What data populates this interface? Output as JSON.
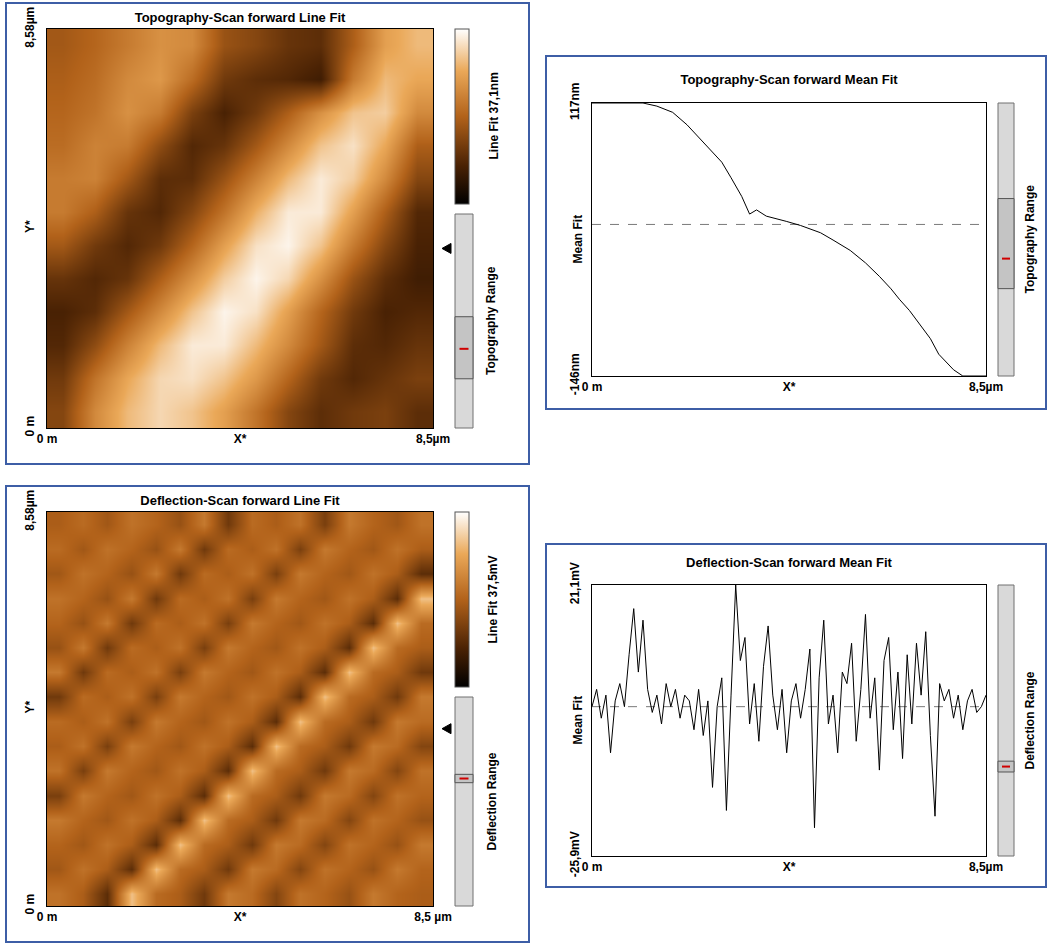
{
  "chart_data": [
    {
      "type": "heatmap",
      "title": "Topography-Scan forward Line Fit",
      "colorbar_label": "Line Fit 37,1nm",
      "range_label": "Topography Range",
      "xlim": [
        0,
        8.5
      ],
      "ylim": [
        0,
        8.58
      ],
      "xticks": [
        {
          "value": 0,
          "label": "0 m"
        },
        {
          "value": 4.25,
          "label": "X*"
        },
        {
          "value": 8.5,
          "label": "8,5µm"
        }
      ],
      "yticks": [
        {
          "value": 0,
          "label": "0 m"
        },
        {
          "value": 4.29,
          "label": "Y*"
        },
        {
          "value": 8.58,
          "label": "8,58µm"
        }
      ],
      "zlim": [
        0,
        37.1
      ],
      "z": [
        [
          14,
          24,
          30,
          33,
          31,
          27,
          21,
          14,
          10,
          12,
          13,
          10
        ],
        [
          12,
          21,
          28,
          33,
          34,
          31,
          26,
          19,
          12,
          9,
          11,
          13
        ],
        [
          9,
          15,
          23,
          30,
          35,
          35,
          30,
          24,
          17,
          10,
          9,
          11
        ],
        [
          8,
          10,
          17,
          24,
          31,
          36,
          34,
          27,
          19,
          12,
          8,
          9
        ],
        [
          11,
          9,
          11,
          18,
          25,
          32,
          36,
          33,
          25,
          16,
          10,
          7
        ],
        [
          17,
          12,
          9,
          12,
          19,
          27,
          34,
          36,
          31,
          22,
          14,
          8
        ],
        [
          22,
          18,
          11,
          9,
          14,
          21,
          29,
          35,
          35,
          27,
          18,
          9
        ],
        [
          22,
          23,
          17,
          10,
          10,
          16,
          23,
          30,
          35,
          32,
          24,
          14
        ],
        [
          20,
          23,
          22,
          15,
          9,
          11,
          17,
          24,
          31,
          34,
          28,
          18
        ],
        [
          19,
          21,
          25,
          22,
          13,
          8,
          12,
          18,
          25,
          31,
          32,
          24
        ],
        [
          18,
          20,
          24,
          26,
          20,
          12,
          10,
          9,
          7,
          22,
          30,
          28
        ],
        [
          17,
          19,
          22,
          25,
          24,
          16,
          14,
          11,
          10,
          18,
          27,
          30
        ]
      ]
    },
    {
      "type": "line",
      "title": "Topography-Scan forward Mean Fit",
      "y_label": "Mean Fit",
      "range_label": "Topography Range",
      "color": "#000000",
      "xlim": [
        0,
        8.5
      ],
      "ylim": [
        -146,
        117
      ],
      "xticks": [
        {
          "value": 0,
          "label": "0 m"
        },
        {
          "value": 4.25,
          "label": "X*"
        },
        {
          "value": 8.5,
          "label": "8,5µm"
        }
      ],
      "yticks": [
        {
          "value": -146,
          "label": "-146nm"
        },
        {
          "value": 117,
          "label": "117nm"
        }
      ],
      "mean_line": 0,
      "x": [
        0,
        1.1,
        1.4,
        1.74,
        2.05,
        2.38,
        2.6,
        2.8,
        3.0,
        3.23,
        3.4,
        3.55,
        3.76,
        3.95,
        4.19,
        4.5,
        4.7,
        4.93,
        5.2,
        5.57,
        5.9,
        6.2,
        6.45,
        6.63,
        6.85,
        7.06,
        7.3,
        7.48,
        7.65,
        7.8,
        8.0,
        8.5
      ],
      "values": [
        117,
        117,
        114,
        108,
        96,
        80,
        70,
        60,
        45,
        27,
        10,
        14,
        8,
        6,
        3,
        -1,
        -4,
        -8,
        -15,
        -25,
        -37,
        -50,
        -62,
        -72,
        -83,
        -96,
        -110,
        -125,
        -133,
        -140,
        -146,
        -146
      ]
    },
    {
      "type": "heatmap",
      "title": "Deflection-Scan forward Line Fit",
      "colorbar_label": "Line Fit 37,5mV",
      "range_label": "Deflection Range",
      "xlim": [
        0,
        8.5
      ],
      "ylim": [
        0,
        8.58
      ],
      "xticks": [
        {
          "value": 0,
          "label": "0 m"
        },
        {
          "value": 4.25,
          "label": "X*"
        },
        {
          "value": 8.5,
          "label": "8,5 µm"
        }
      ],
      "yticks": [
        {
          "value": 0,
          "label": "0 m"
        },
        {
          "value": 4.29,
          "label": "Y*"
        },
        {
          "value": 8.58,
          "label": "8,58µm"
        }
      ],
      "zlim": [
        0,
        37.5
      ],
      "z": [
        [
          21,
          18,
          10,
          31,
          20,
          18,
          12,
          22,
          20,
          14,
          21,
          19,
          16,
          22,
          19,
          18
        ],
        [
          17,
          21,
          18,
          10,
          31,
          20,
          18,
          12,
          22,
          20,
          14,
          21,
          19,
          16,
          22,
          19
        ],
        [
          19,
          17,
          21,
          18,
          10,
          31,
          20,
          18,
          12,
          22,
          20,
          14,
          21,
          19,
          16,
          22
        ],
        [
          22,
          19,
          17,
          21,
          18,
          10,
          31,
          20,
          18,
          12,
          22,
          20,
          14,
          21,
          19,
          16
        ],
        [
          13,
          22,
          19,
          17,
          21,
          18,
          10,
          31,
          20,
          18,
          12,
          22,
          20,
          14,
          21,
          19
        ],
        [
          21,
          13,
          22,
          19,
          17,
          21,
          18,
          10,
          31,
          20,
          18,
          12,
          22,
          20,
          14,
          21
        ],
        [
          18,
          21,
          13,
          22,
          19,
          17,
          21,
          18,
          10,
          31,
          20,
          18,
          12,
          22,
          20,
          14
        ],
        [
          20,
          18,
          21,
          13,
          22,
          19,
          17,
          21,
          18,
          10,
          31,
          20,
          18,
          12,
          22,
          20
        ],
        [
          12,
          20,
          18,
          21,
          13,
          22,
          19,
          17,
          21,
          18,
          10,
          31,
          20,
          18,
          12,
          22
        ],
        [
          22,
          12,
          20,
          18,
          21,
          13,
          22,
          19,
          17,
          21,
          18,
          10,
          31,
          20,
          18,
          12
        ],
        [
          16,
          22,
          12,
          20,
          18,
          21,
          13,
          22,
          19,
          17,
          21,
          18,
          10,
          31,
          20,
          18
        ],
        [
          19,
          16,
          22,
          12,
          20,
          18,
          21,
          13,
          22,
          19,
          17,
          21,
          18,
          10,
          31,
          20
        ],
        [
          21,
          19,
          16,
          22,
          12,
          20,
          18,
          21,
          13,
          22,
          19,
          17,
          21,
          18,
          10,
          31
        ],
        [
          17,
          21,
          19,
          16,
          22,
          12,
          20,
          18,
          21,
          13,
          22,
          19,
          17,
          21,
          18,
          10
        ],
        [
          20,
          17,
          21,
          19,
          16,
          22,
          12,
          20,
          18,
          21,
          13,
          22,
          19,
          17,
          21,
          18
        ],
        [
          18,
          20,
          17,
          21,
          19,
          16,
          22,
          12,
          20,
          18,
          21,
          13,
          22,
          19,
          17,
          21
        ]
      ]
    },
    {
      "type": "line",
      "title": "Deflection-Scan forward Mean Fit",
      "y_label": "Mean Fit",
      "range_label": "Deflection Range",
      "color": "#000000",
      "xlim": [
        0,
        8.5
      ],
      "ylim": [
        -25.9,
        21.1
      ],
      "xticks": [
        {
          "value": 0,
          "label": "0 m"
        },
        {
          "value": 4.25,
          "label": "X*"
        },
        {
          "value": 8.5,
          "label": "8,5µm"
        }
      ],
      "yticks": [
        {
          "value": -25.9,
          "label": "-25,9mV"
        },
        {
          "value": 21.1,
          "label": "21,1mV"
        }
      ],
      "mean_line": 0,
      "x": [
        0,
        0.1,
        0.2,
        0.3,
        0.4,
        0.5,
        0.6,
        0.7,
        0.8,
        0.9,
        1.0,
        1.1,
        1.2,
        1.3,
        1.4,
        1.5,
        1.6,
        1.7,
        1.8,
        1.9,
        2.0,
        2.1,
        2.2,
        2.3,
        2.4,
        2.5,
        2.6,
        2.7,
        2.8,
        2.9,
        3.0,
        3.1,
        3.2,
        3.3,
        3.4,
        3.5,
        3.6,
        3.7,
        3.8,
        3.9,
        4.0,
        4.1,
        4.2,
        4.3,
        4.4,
        4.5,
        4.6,
        4.7,
        4.8,
        4.9,
        5.0,
        5.1,
        5.2,
        5.3,
        5.4,
        5.5,
        5.6,
        5.7,
        5.8,
        5.9,
        6.0,
        6.1,
        6.2,
        6.3,
        6.4,
        6.5,
        6.6,
        6.7,
        6.8,
        6.9,
        7.0,
        7.1,
        7.2,
        7.3,
        7.4,
        7.5,
        7.6,
        7.7,
        7.8,
        7.9,
        8.0,
        8.1,
        8.2,
        8.3,
        8.4,
        8.5
      ],
      "values": [
        0,
        3,
        -2,
        2,
        -8,
        1,
        4,
        0,
        9,
        17,
        6,
        15,
        3,
        -1,
        2,
        -3,
        4,
        0,
        3,
        -2,
        2,
        1,
        -4,
        3,
        -5,
        1,
        -14,
        0,
        5,
        -18,
        2,
        21.1,
        8,
        12,
        -3,
        4,
        -6,
        7,
        14,
        2,
        -4,
        3,
        -8,
        1,
        4,
        -2,
        3,
        10,
        -21,
        5,
        15,
        -3,
        2,
        -8,
        6,
        4,
        11,
        -6,
        3,
        16,
        -2,
        5,
        -11,
        8,
        12,
        -4,
        6,
        -9,
        9,
        -3,
        11,
        2,
        13,
        -5,
        -19,
        4,
        1,
        3,
        -2,
        2,
        -4,
        1,
        3,
        -1,
        0,
        2
      ]
    }
  ]
}
